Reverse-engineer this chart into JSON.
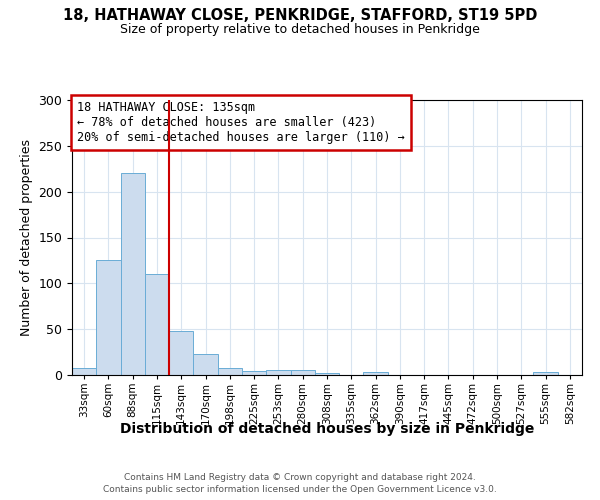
{
  "title1": "18, HATHAWAY CLOSE, PENKRIDGE, STAFFORD, ST19 5PD",
  "title2": "Size of property relative to detached houses in Penkridge",
  "xlabel": "Distribution of detached houses by size in Penkridge",
  "ylabel": "Number of detached properties",
  "bin_labels": [
    "33sqm",
    "60sqm",
    "88sqm",
    "115sqm",
    "143sqm",
    "170sqm",
    "198sqm",
    "225sqm",
    "253sqm",
    "280sqm",
    "308sqm",
    "335sqm",
    "362sqm",
    "390sqm",
    "417sqm",
    "445sqm",
    "472sqm",
    "500sqm",
    "527sqm",
    "555sqm",
    "582sqm"
  ],
  "bar_heights": [
    8,
    125,
    220,
    110,
    48,
    23,
    8,
    4,
    5,
    6,
    2,
    0,
    3,
    0,
    0,
    0,
    0,
    0,
    0,
    3,
    0
  ],
  "bar_color": "#ccdcee",
  "bar_edge_color": "#6aacd6",
  "ylim": [
    0,
    300
  ],
  "yticks": [
    0,
    50,
    100,
    150,
    200,
    250,
    300
  ],
  "red_line_x": 4.0,
  "annotation_text": "18 HATHAWAY CLOSE: 135sqm\n← 78% of detached houses are smaller (423)\n20% of semi-detached houses are larger (110) →",
  "annotation_box_color": "#ffffff",
  "annotation_box_edge": "#cc0000",
  "red_line_color": "#cc0000",
  "footer1": "Contains HM Land Registry data © Crown copyright and database right 2024.",
  "footer2": "Contains public sector information licensed under the Open Government Licence v3.0.",
  "background_color": "#ffffff",
  "plot_bg_color": "#ffffff",
  "grid_color": "#d8e4f0"
}
